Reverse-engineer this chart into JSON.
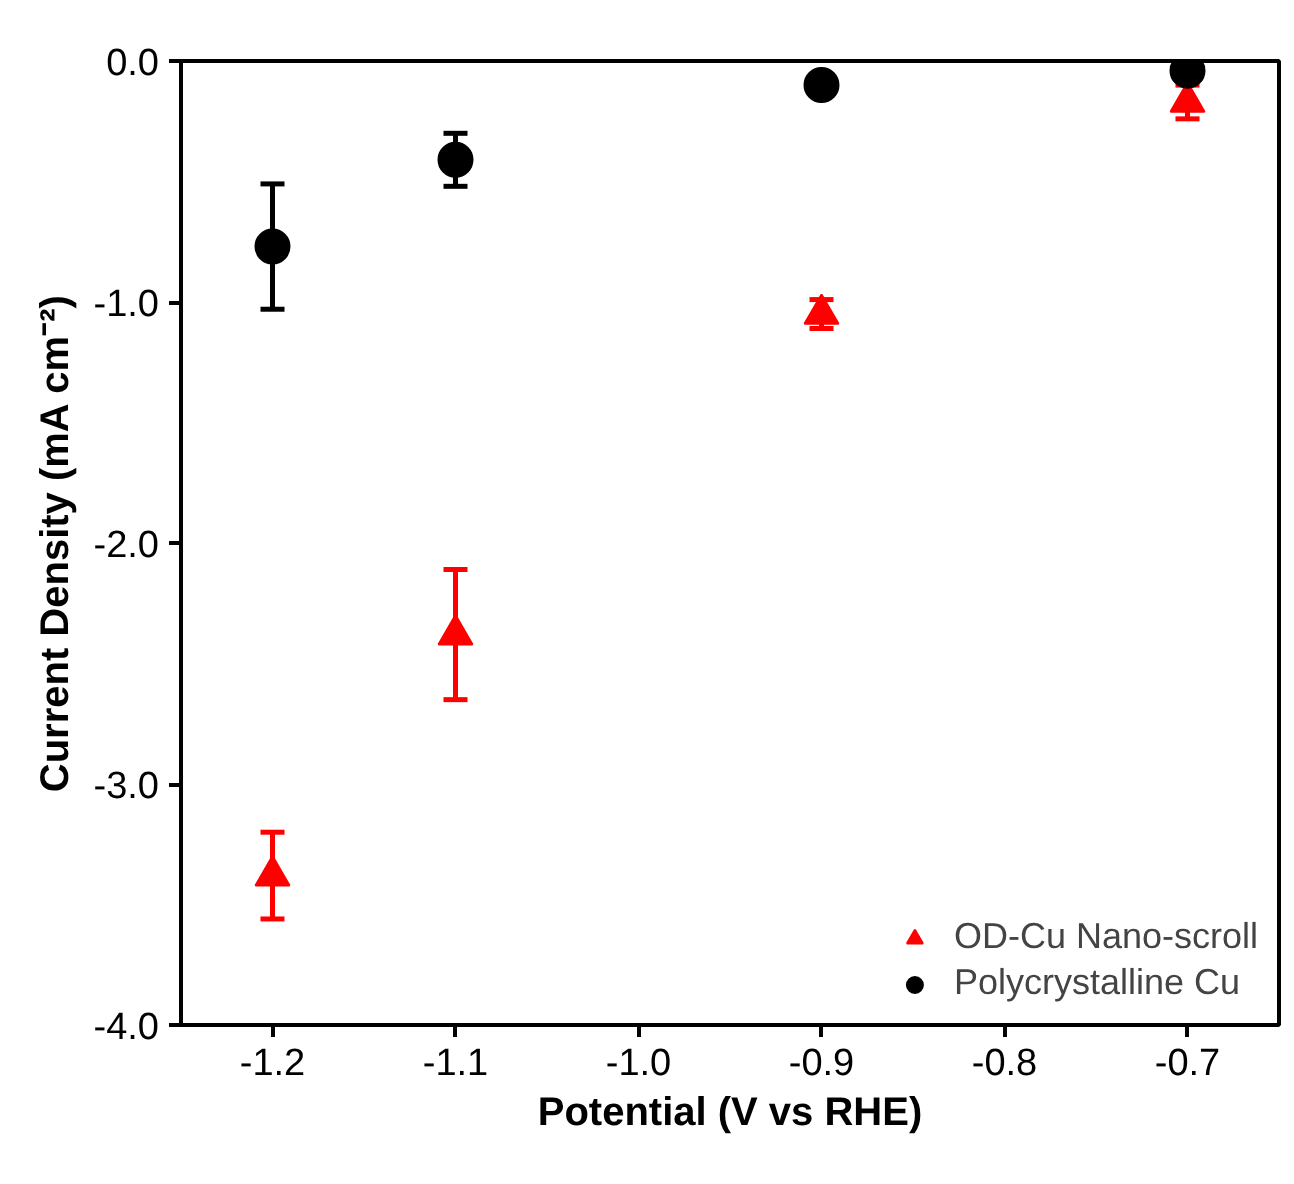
{
  "chart_data": {
    "type": "scatter",
    "xlabel": "Potential (V vs RHE)",
    "ylabel": "Current Density (mA cm⁻²)",
    "x": [
      -1.2,
      -1.1,
      -0.9,
      -0.7
    ],
    "series": [
      {
        "name": "OD-Cu Nano-scroll",
        "color": "#ff0000",
        "marker": "triangle",
        "values": [
          -3.38,
          -2.38,
          -1.05,
          -0.17
        ],
        "errors": [
          0.18,
          0.27,
          0.06,
          0.07
        ]
      },
      {
        "name": "Polycrystalline Cu",
        "color": "#000000",
        "marker": "circle",
        "values": [
          -0.77,
          -0.41,
          -0.1,
          -0.04
        ],
        "errors": [
          0.26,
          0.11,
          null,
          null
        ]
      }
    ],
    "xlim": [
      -1.25,
      -0.65
    ],
    "xticks": [
      -1.2,
      -1.1,
      {
        "value": -1.0,
        "label": "-1.0"
      },
      -0.9,
      -0.8,
      -0.7
    ],
    "ylim": [
      -4.0,
      0.0
    ],
    "yticks": [
      {
        "value": -4,
        "label": "-4.0"
      },
      {
        "value": -3,
        "label": "-3.0"
      },
      {
        "value": -2,
        "label": "-2.0"
      },
      {
        "value": -1,
        "label": "-1.0"
      },
      {
        "value": 0,
        "label": "0.0"
      }
    ],
    "grid": false,
    "legend": "bottom right"
  }
}
